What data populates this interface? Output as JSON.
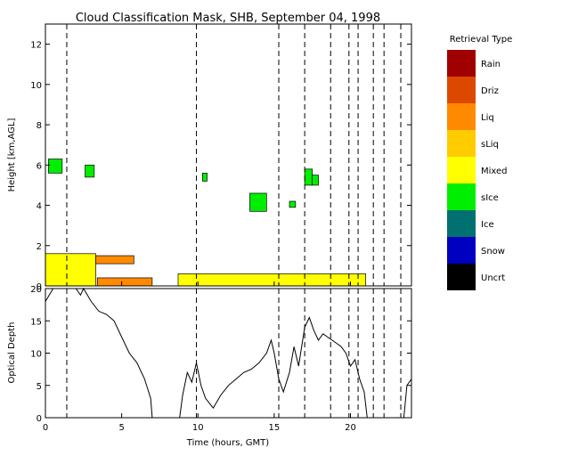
{
  "chart_data": [
    {
      "type": "heatmap",
      "title": "Cloud Classification Mask, SHB, September 04, 1998",
      "ylabel": "Height [km,AGL]",
      "xlim": [
        0,
        24
      ],
      "ylim": [
        0,
        13
      ],
      "yticks": [
        "0",
        "2",
        "4",
        "6",
        "8",
        "10",
        "12"
      ],
      "dashed_lines_x": [
        1.4,
        9.9,
        15.3,
        17.0,
        18.7,
        19.9,
        20.5,
        21.5,
        22.2,
        23.3
      ],
      "legend": {
        "title": "Retrieval Type",
        "entries": [
          {
            "label": "Rain",
            "color": "#a00000"
          },
          {
            "label": "Driz",
            "color": "#dc4800"
          },
          {
            "label": "Liq",
            "color": "#ff8a00"
          },
          {
            "label": "sLiq",
            "color": "#ffcc00"
          },
          {
            "label": "Mixed",
            "color": "#ffff00"
          },
          {
            "label": "sIce",
            "color": "#00ee00"
          },
          {
            "label": "Ice",
            "color": "#007070"
          },
          {
            "label": "Snow",
            "color": "#0000c0"
          },
          {
            "label": "Uncrt",
            "color": "#000000"
          }
        ]
      },
      "regions": [
        {
          "type": "Mixed",
          "x0": 0.0,
          "x1": 3.3,
          "y0": 0.0,
          "y1": 1.6
        },
        {
          "type": "Liq",
          "x0": 3.3,
          "x1": 5.8,
          "y0": 1.1,
          "y1": 1.5
        },
        {
          "type": "Liq",
          "x0": 3.4,
          "x1": 7.0,
          "y0": 0.0,
          "y1": 0.4
        },
        {
          "type": "Mixed",
          "x0": 8.7,
          "x1": 21.0,
          "y0": 0.0,
          "y1": 0.6
        },
        {
          "type": "sIce",
          "x0": 0.2,
          "x1": 1.1,
          "y0": 5.6,
          "y1": 6.3
        },
        {
          "type": "sIce",
          "x0": 2.6,
          "x1": 3.2,
          "y0": 5.4,
          "y1": 6.0
        },
        {
          "type": "sIce",
          "x0": 13.4,
          "x1": 14.5,
          "y0": 3.7,
          "y1": 4.6
        },
        {
          "type": "sIce",
          "x0": 17.0,
          "x1": 17.5,
          "y0": 5.0,
          "y1": 5.8
        },
        {
          "type": "sIce",
          "x0": 17.5,
          "x1": 17.9,
          "y0": 5.0,
          "y1": 5.5
        },
        {
          "type": "sIce",
          "x0": 10.3,
          "x1": 10.6,
          "y0": 5.2,
          "y1": 5.6
        },
        {
          "type": "sIce",
          "x0": 16.0,
          "x1": 16.4,
          "y0": 3.9,
          "y1": 4.2
        }
      ]
    },
    {
      "type": "line",
      "xlabel": "Time (hours, GMT)",
      "ylabel": "Optical Depth",
      "xlim": [
        0,
        24
      ],
      "ylim": [
        0,
        20
      ],
      "xticks": [
        "0",
        "5",
        "10",
        "15",
        "20"
      ],
      "yticks": [
        "0",
        "5",
        "10",
        "15",
        "20"
      ],
      "x": [
        0.0,
        0.5,
        1.0,
        1.5,
        2.0,
        2.3,
        2.5,
        3.0,
        3.5,
        4.0,
        4.5,
        5.0,
        5.5,
        6.0,
        6.5,
        6.9,
        7.0,
        8.8,
        9.0,
        9.3,
        9.6,
        9.9,
        10.2,
        10.5,
        11.0,
        11.5,
        12.0,
        12.5,
        13.0,
        13.5,
        14.0,
        14.5,
        14.8,
        15.0,
        15.3,
        15.6,
        16.0,
        16.3,
        16.6,
        17.0,
        17.3,
        17.6,
        17.9,
        18.2,
        18.5,
        18.8,
        19.1,
        19.4,
        19.7,
        20.0,
        20.3,
        20.6,
        20.9,
        21.1,
        23.5,
        23.7,
        24.0
      ],
      "y": [
        18.0,
        20.0,
        20.0,
        20.0,
        20.0,
        19.0,
        20.0,
        18.0,
        16.5,
        16.0,
        15.0,
        12.5,
        10.0,
        8.5,
        6.0,
        3.0,
        0.0,
        0.0,
        3.5,
        7.0,
        5.5,
        8.5,
        5.0,
        3.0,
        1.5,
        3.5,
        5.0,
        6.0,
        7.0,
        7.5,
        8.5,
        10.0,
        12.0,
        10.0,
        6.0,
        4.0,
        7.0,
        11.0,
        8.0,
        14.0,
        15.5,
        13.5,
        12.0,
        13.0,
        12.5,
        12.0,
        11.5,
        11.0,
        10.0,
        8.0,
        9.0,
        6.0,
        4.0,
        0.0,
        0.0,
        5.0,
        6.0
      ],
      "dashed_lines_x": [
        1.4,
        9.9,
        15.3,
        17.0,
        18.7,
        19.9,
        20.5,
        21.5,
        22.2,
        23.3
      ]
    }
  ]
}
